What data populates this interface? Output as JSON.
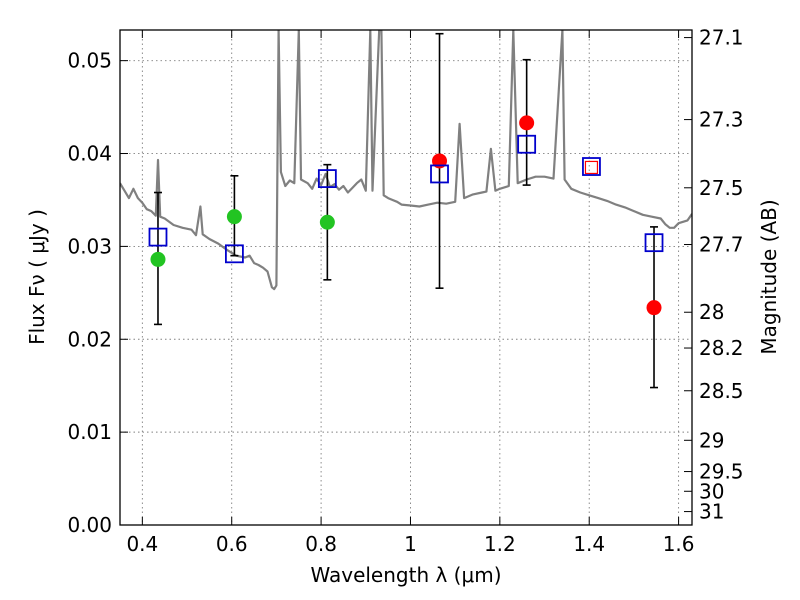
{
  "chart_data": {
    "type": "scatter",
    "xlabel": "Wavelength  λ (μm)",
    "ylabel": "Flux  Fν  ( μJy )",
    "y2label": "Magnitude (AB)",
    "xlim": [
      0.35,
      1.63
    ],
    "ylim": [
      0.0,
      0.0533
    ],
    "grid": true,
    "x_ticks": [
      0.4,
      0.6,
      0.8,
      1.0,
      1.2,
      1.4,
      1.6
    ],
    "x_tick_labels": [
      "0.4",
      "0.6",
      "0.8",
      "1",
      "1.2",
      "1.4",
      "1.6"
    ],
    "y_ticks": [
      0.0,
      0.01,
      0.02,
      0.03,
      0.04,
      0.05
    ],
    "y_tick_labels": [
      "0.00",
      "0.01",
      "0.02",
      "0.03",
      "0.04",
      "0.05"
    ],
    "mag_ticks": [
      "27.1",
      "27.3",
      "27.5",
      "27.7",
      "28",
      "28.2",
      "28.5",
      "29",
      "29.5",
      "30",
      "31"
    ],
    "observed_green": [
      {
        "x": 0.435,
        "y": 0.0286,
        "yerr_low": 0.0216,
        "yerr_high": 0.0358
      },
      {
        "x": 0.606,
        "y": 0.0332,
        "yerr_low": 0.029,
        "yerr_high": 0.0376
      },
      {
        "x": 0.814,
        "y": 0.0326,
        "yerr_low": 0.0264,
        "yerr_high": 0.0388
      }
    ],
    "observed_red": [
      {
        "x": 1.065,
        "y": 0.0392,
        "yerr_low": 0.0255,
        "yerr_high": 0.0529
      },
      {
        "x": 1.26,
        "y": 0.0433,
        "yerr_low": 0.0366,
        "yerr_high": 0.0501
      },
      {
        "x": 1.545,
        "y": 0.0234,
        "yerr_low": 0.0148,
        "yerr_high": 0.0321
      }
    ],
    "model_points": [
      {
        "x": 0.435,
        "y": 0.031
      },
      {
        "x": 0.606,
        "y": 0.0292
      },
      {
        "x": 0.814,
        "y": 0.0373
      },
      {
        "x": 1.065,
        "y": 0.0378
      },
      {
        "x": 1.26,
        "y": 0.041
      },
      {
        "x": 1.405,
        "y": 0.0386
      },
      {
        "x": 1.545,
        "y": 0.0304
      }
    ],
    "upper_limit": {
      "x": 1.405,
      "y": 0.0385
    },
    "spectrum_line": [
      [
        0.35,
        0.0368
      ],
      [
        0.36,
        0.036
      ],
      [
        0.37,
        0.0352
      ],
      [
        0.38,
        0.0362
      ],
      [
        0.39,
        0.0352
      ],
      [
        0.4,
        0.0347
      ],
      [
        0.41,
        0.034
      ],
      [
        0.42,
        0.0338
      ],
      [
        0.43,
        0.0333
      ],
      [
        0.435,
        0.0393
      ],
      [
        0.44,
        0.0332
      ],
      [
        0.45,
        0.033
      ],
      [
        0.47,
        0.0323
      ],
      [
        0.49,
        0.032
      ],
      [
        0.51,
        0.0318
      ],
      [
        0.52,
        0.0312
      ],
      [
        0.53,
        0.0343
      ],
      [
        0.535,
        0.0313
      ],
      [
        0.55,
        0.0308
      ],
      [
        0.57,
        0.0303
      ],
      [
        0.59,
        0.0296
      ],
      [
        0.61,
        0.029
      ],
      [
        0.63,
        0.0288
      ],
      [
        0.64,
        0.029
      ],
      [
        0.65,
        0.0282
      ],
      [
        0.66,
        0.028
      ],
      [
        0.67,
        0.0277
      ],
      [
        0.68,
        0.0273
      ],
      [
        0.69,
        0.0256
      ],
      [
        0.695,
        0.0254
      ],
      [
        0.7,
        0.0258
      ],
      [
        0.705,
        0.0533
      ],
      [
        0.71,
        0.038
      ],
      [
        0.72,
        0.0365
      ],
      [
        0.73,
        0.0371
      ],
      [
        0.74,
        0.0368
      ],
      [
        0.75,
        0.0533
      ],
      [
        0.755,
        0.0372
      ],
      [
        0.77,
        0.0368
      ],
      [
        0.78,
        0.0362
      ],
      [
        0.79,
        0.0373
      ],
      [
        0.8,
        0.0366
      ],
      [
        0.81,
        0.0378
      ],
      [
        0.82,
        0.0364
      ],
      [
        0.83,
        0.0367
      ],
      [
        0.84,
        0.0361
      ],
      [
        0.85,
        0.0365
      ],
      [
        0.86,
        0.0358
      ],
      [
        0.87,
        0.0363
      ],
      [
        0.88,
        0.0368
      ],
      [
        0.89,
        0.0372
      ],
      [
        0.9,
        0.036
      ],
      [
        0.91,
        0.0533
      ],
      [
        0.915,
        0.036
      ],
      [
        0.93,
        0.0533
      ],
      [
        0.935,
        0.0533
      ],
      [
        0.94,
        0.0355
      ],
      [
        0.95,
        0.0352
      ],
      [
        0.96,
        0.035
      ],
      [
        0.97,
        0.0348
      ],
      [
        0.98,
        0.0345
      ],
      [
        1.0,
        0.0344
      ],
      [
        1.02,
        0.0343
      ],
      [
        1.04,
        0.0345
      ],
      [
        1.06,
        0.0347
      ],
      [
        1.08,
        0.0346
      ],
      [
        1.1,
        0.0348
      ],
      [
        1.11,
        0.0432
      ],
      [
        1.12,
        0.0352
      ],
      [
        1.14,
        0.0356
      ],
      [
        1.16,
        0.0358
      ],
      [
        1.17,
        0.0359
      ],
      [
        1.18,
        0.0405
      ],
      [
        1.19,
        0.036
      ],
      [
        1.2,
        0.0362
      ],
      [
        1.22,
        0.0365
      ],
      [
        1.23,
        0.0533
      ],
      [
        1.24,
        0.0368
      ],
      [
        1.26,
        0.0372
      ],
      [
        1.28,
        0.0375
      ],
      [
        1.3,
        0.0375
      ],
      [
        1.32,
        0.0373
      ],
      [
        1.34,
        0.0533
      ],
      [
        1.345,
        0.0372
      ],
      [
        1.36,
        0.0362
      ],
      [
        1.38,
        0.0358
      ],
      [
        1.4,
        0.0355
      ],
      [
        1.42,
        0.0352
      ],
      [
        1.44,
        0.0349
      ],
      [
        1.46,
        0.0345
      ],
      [
        1.48,
        0.0342
      ],
      [
        1.5,
        0.0338
      ],
      [
        1.52,
        0.0334
      ],
      [
        1.54,
        0.0332
      ],
      [
        1.56,
        0.033
      ],
      [
        1.57,
        0.0324
      ],
      [
        1.58,
        0.032
      ],
      [
        1.59,
        0.032
      ],
      [
        1.6,
        0.0325
      ],
      [
        1.62,
        0.0328
      ],
      [
        1.63,
        0.0335
      ]
    ],
    "colors": {
      "spectrum": "#808080",
      "green": "#22c422",
      "red": "#ff0000",
      "model_square": "#0000cc",
      "errorbar": "#000000",
      "grid": "#808080"
    }
  }
}
